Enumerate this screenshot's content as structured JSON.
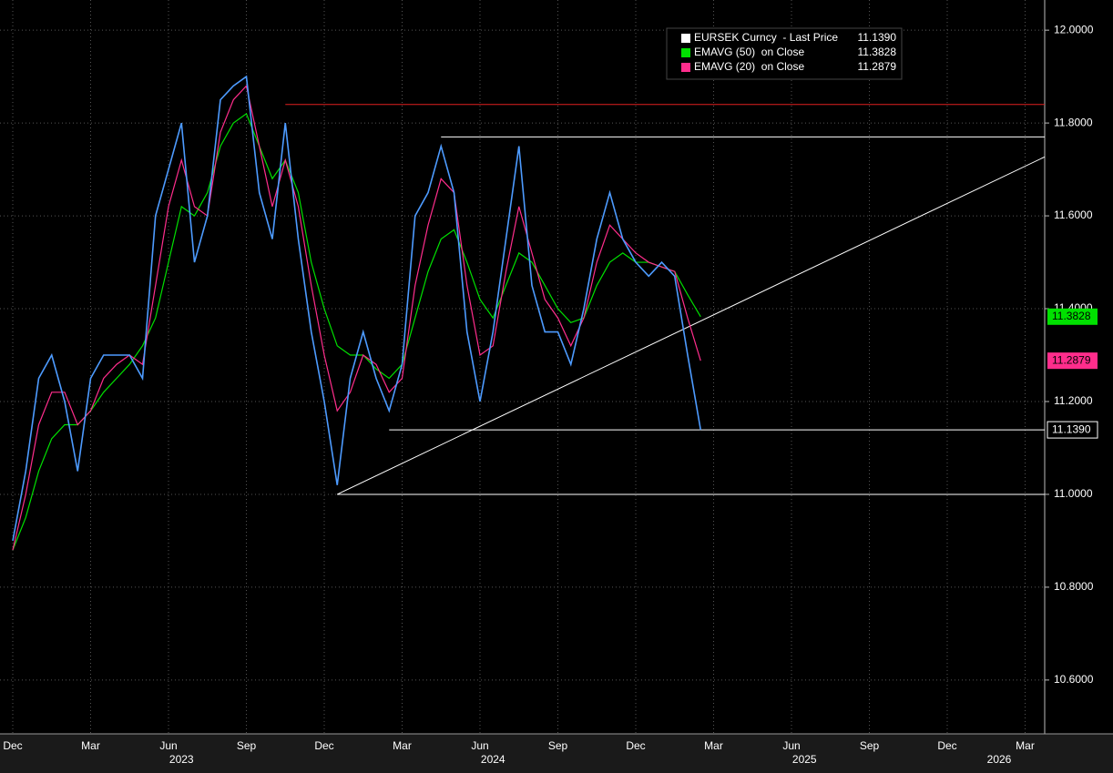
{
  "chart_data": {
    "type": "line",
    "categories": [
      "Dec",
      null,
      null,
      null,
      null,
      null,
      "Mar",
      null,
      null,
      null,
      null,
      null,
      "Jun",
      null,
      null,
      null,
      null,
      null,
      "Sep",
      null,
      null,
      null,
      null,
      null,
      "Dec",
      null,
      null,
      null,
      null,
      null,
      "Mar",
      null,
      null,
      null,
      null,
      null,
      "Jun",
      null,
      null,
      null,
      null,
      null,
      "Sep",
      null,
      null,
      null,
      null,
      null,
      "Dec",
      null,
      null,
      null,
      null,
      null,
      "Mar",
      null,
      null,
      null,
      null,
      null,
      "Jun",
      null,
      null,
      null,
      null,
      null,
      "Sep",
      null,
      null,
      null,
      null,
      null,
      "Dec",
      null,
      null,
      null,
      null,
      null,
      "Mar",
      null
    ],
    "category_groups": [
      null,
      null,
      null,
      null,
      null,
      null,
      null,
      null,
      null,
      null,
      null,
      null,
      null,
      "2023",
      null,
      null,
      null,
      null,
      null,
      null,
      null,
      null,
      null,
      null,
      null,
      null,
      null,
      null,
      null,
      null,
      null,
      null,
      null,
      null,
      null,
      null,
      null,
      "2024",
      null,
      null,
      null,
      null,
      null,
      null,
      null,
      null,
      null,
      null,
      null,
      null,
      null,
      null,
      null,
      null,
      null,
      null,
      null,
      null,
      null,
      null,
      null,
      "2025",
      null,
      null,
      null,
      null,
      null,
      null,
      null,
      null,
      null,
      null,
      null,
      null,
      null,
      null,
      "2026",
      null,
      null,
      null
    ],
    "series": [
      {
        "name": "EURSEK Curncy  - Last Price",
        "color": "#ffffff",
        "line_color": "#4d9bff",
        "last_label": "11.1390",
        "values": [
          10.9,
          11.05,
          11.25,
          11.3,
          11.2,
          11.05,
          11.25,
          11.3,
          11.3,
          11.3,
          11.25,
          11.6,
          11.7,
          11.8,
          11.5,
          11.6,
          11.85,
          11.88,
          11.9,
          11.65,
          11.55,
          11.8,
          11.55,
          11.35,
          11.2,
          11.02,
          11.25,
          11.35,
          11.25,
          11.18,
          11.28,
          11.6,
          11.65,
          11.75,
          11.65,
          11.35,
          11.2,
          11.35,
          11.55,
          11.75,
          11.45,
          11.35,
          11.35,
          11.28,
          11.4,
          11.55,
          11.65,
          11.55,
          11.5,
          11.47,
          11.5,
          11.47,
          11.3,
          11.139,
          null,
          null,
          null,
          null,
          null,
          null,
          null,
          null,
          null,
          null,
          null,
          null,
          null,
          null,
          null,
          null,
          null,
          null,
          null,
          null,
          null,
          null,
          null,
          null,
          null,
          null
        ]
      },
      {
        "name": "EMAVG (50)  on Close",
        "color": "#00e000",
        "values": [
          10.88,
          10.95,
          11.05,
          11.12,
          11.15,
          11.15,
          11.18,
          11.22,
          11.25,
          11.28,
          11.32,
          11.38,
          11.5,
          11.62,
          11.6,
          11.65,
          11.75,
          11.8,
          11.82,
          11.75,
          11.68,
          11.72,
          11.65,
          11.5,
          11.4,
          11.32,
          11.3,
          11.3,
          11.27,
          11.25,
          11.28,
          11.38,
          11.48,
          11.55,
          11.57,
          11.5,
          11.42,
          11.38,
          11.45,
          11.52,
          11.5,
          11.45,
          11.4,
          11.37,
          11.38,
          11.45,
          11.5,
          11.52,
          11.5,
          11.5,
          11.49,
          11.48,
          11.43,
          11.3828,
          null,
          null,
          null,
          null,
          null,
          null,
          null,
          null,
          null,
          null,
          null,
          null,
          null,
          null,
          null,
          null,
          null,
          null,
          null,
          null,
          null,
          null,
          null,
          null,
          null,
          null
        ]
      },
      {
        "name": "EMAVG (20)  on Close",
        "color": "#ff2d8c",
        "values": [
          10.88,
          11.0,
          11.15,
          11.22,
          11.22,
          11.15,
          11.18,
          11.25,
          11.28,
          11.3,
          11.28,
          11.45,
          11.62,
          11.72,
          11.62,
          11.6,
          11.78,
          11.85,
          11.88,
          11.75,
          11.62,
          11.72,
          11.62,
          11.45,
          11.3,
          11.18,
          11.22,
          11.3,
          11.28,
          11.22,
          11.25,
          11.45,
          11.58,
          11.68,
          11.65,
          11.45,
          11.3,
          11.32,
          11.48,
          11.62,
          11.52,
          11.42,
          11.38,
          11.32,
          11.38,
          11.5,
          11.58,
          11.55,
          11.52,
          11.5,
          11.49,
          11.48,
          11.38,
          11.2879,
          null,
          null,
          null,
          null,
          null,
          null,
          null,
          null,
          null,
          null,
          null,
          null,
          null,
          null,
          null,
          null,
          null,
          null,
          null,
          null,
          null,
          null,
          null,
          null,
          null,
          null
        ]
      }
    ],
    "levels": [
      {
        "y": 11.84,
        "from": 21,
        "color": "#e02020"
      },
      {
        "y": 11.77,
        "from": 33,
        "color": "#ffffff"
      },
      {
        "y": 11.139,
        "from": 29,
        "color": "#ffffff"
      },
      {
        "y": 11.0,
        "from": 25,
        "color": "#ffffff"
      }
    ],
    "trend_line": {
      "from": 25,
      "y_start": 11.0,
      "y_end": 11.727,
      "color": "#ffffff"
    },
    "ylim": [
      10.486,
      12.065
    ],
    "yticks": [
      {
        "value": 10.6,
        "label": "10.6000"
      },
      {
        "value": 10.8,
        "label": "10.8000"
      },
      {
        "value": 11.0,
        "label": "11.0000"
      },
      {
        "value": 11.2,
        "label": "11.2000"
      },
      {
        "value": 11.4,
        "label": "11.4000"
      },
      {
        "value": 11.6,
        "label": "11.6000"
      },
      {
        "value": 11.8,
        "label": "11.8000"
      },
      {
        "value": 12.0,
        "label": "12.0000"
      }
    ],
    "grid": true
  }
}
